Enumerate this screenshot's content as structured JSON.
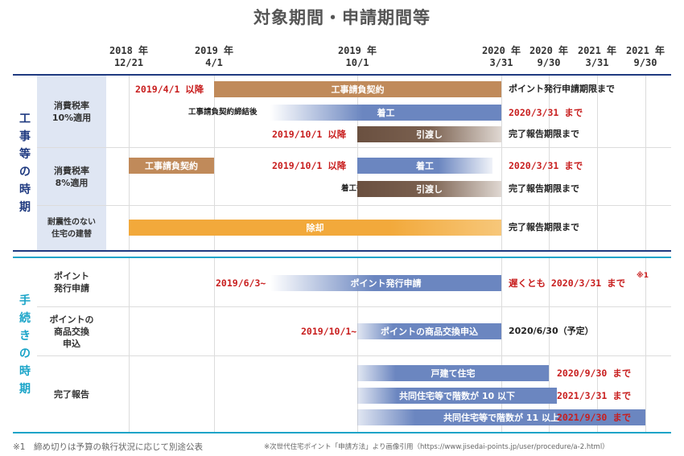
{
  "title": "対象期間・申請期間等",
  "dates": [
    {
      "top": "2018 年",
      "bottom": "12/21"
    },
    {
      "top": "2019 年",
      "bottom": "4/1"
    },
    {
      "top": "2019 年",
      "bottom": "10/1"
    },
    {
      "top": "2020 年",
      "bottom": "3/31"
    },
    {
      "top": "2020 年",
      "bottom": "9/30"
    },
    {
      "top": "2021 年",
      "bottom": "3/31"
    },
    {
      "top": "2021 年",
      "bottom": "9/30"
    }
  ],
  "sections": {
    "construction": {
      "label": [
        "工",
        "事",
        "等",
        "の",
        "時",
        "期"
      ]
    },
    "procedure": {
      "label": [
        "手",
        "続",
        "き",
        "の",
        "時",
        "期"
      ]
    }
  },
  "rows": {
    "tax10": {
      "label": [
        "消費税率",
        "10%適用"
      ]
    },
    "tax8": {
      "label": [
        "消費税率",
        "8%適用"
      ]
    },
    "rebuild": {
      "label": [
        "耐震性のない",
        "住宅の建替"
      ]
    },
    "issue": {
      "label": [
        "ポイント",
        "発行申請"
      ]
    },
    "exchange": {
      "label": [
        "ポイントの",
        "商品交換",
        "申込"
      ]
    },
    "report": {
      "label": [
        "完了報告"
      ]
    }
  },
  "items": {
    "t10_contract_note": "2019/4/1 以降",
    "t10_contract_bar": "工事請負契約",
    "t10_contract_end": "ポイント発行申請期限まで",
    "t10_start_note": "工事請負契約締結後",
    "t10_start_bar": "着工",
    "t10_start_end": "2020/3/31 まで",
    "t10_handover_note": "2019/10/1 以降",
    "t10_handover_bar": "引渡し",
    "t10_handover_end": "完了報告期限まで",
    "t8_contract_bar": "工事請負契約",
    "t8_start_note": "2019/10/1 以降",
    "t8_start_bar": "着工",
    "t8_start_end": "2020/3/31 まで",
    "t8_handover_note": "着工後",
    "t8_handover_bar": "引渡し",
    "t8_handover_end": "完了報告期限まで",
    "rebuild_bar": "除却",
    "rebuild_end": "完了報告期限まで",
    "issue_note": "2019/6/3~",
    "issue_bar": "ポイント発行申請",
    "issue_end": "遅くとも 2020/3/31 まで",
    "issue_mark": "※1",
    "exchange_note": "2019/10/1~",
    "exchange_bar": "ポイントの商品交換申込",
    "exchange_end": "2020/6/30（予定）",
    "report_detached_bar": "戸建て住宅",
    "report_detached_end": "2020/9/30 まで",
    "report_collective10_bar": "共同住宅等で階数が 10 以下",
    "report_collective10_end": "2021/3/31 まで",
    "report_collective11_bar": "共同住宅等で階数が 11 以上",
    "report_collective11_end": "2021/9/30 まで"
  },
  "footnotes": {
    "note1": "※1　締め切りは予算の執行状況に応じて別途公表",
    "source": "※次世代住宅ポイント「申請方法」より画像引用（https://www.jisedai-points.jp/user/procedure/a-2.html）"
  },
  "colors": {
    "brown": "#c08a5a",
    "blue": "#6b86c0",
    "dark_brown": "#6a5040",
    "orange": "#f2a93b",
    "section1_label": "#1f3a80",
    "section2_label": "#1aa4c8",
    "rowlabel_bg": "#dfe6f3"
  }
}
